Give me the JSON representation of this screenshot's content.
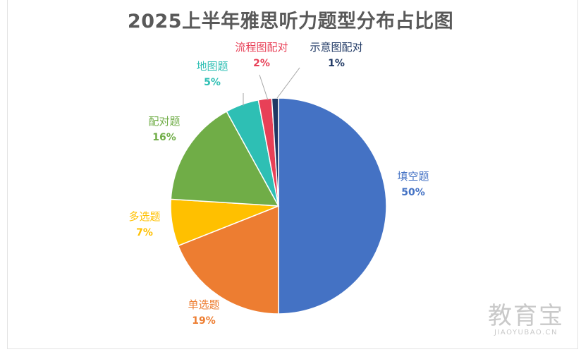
{
  "chart_data": {
    "type": "pie",
    "title": "2025上半年雅思听力题型分布占比图",
    "start_angle_deg": 0,
    "direction": "clockwise",
    "legend": "none",
    "slices": [
      {
        "name": "填空题",
        "value": 50,
        "label": "50%",
        "color": "#4472C4"
      },
      {
        "name": "单选题",
        "value": 19,
        "label": "19%",
        "color": "#ED7D31"
      },
      {
        "name": "多选题",
        "value": 7,
        "label": "7%",
        "color": "#FFC000"
      },
      {
        "name": "配对题",
        "value": 16,
        "label": "16%",
        "color": "#70AD47"
      },
      {
        "name": "地图题",
        "value": 5,
        "label": "5%",
        "color": "#2EBFB4"
      },
      {
        "name": "流程图配对",
        "value": 2,
        "label": "2%",
        "color": "#E84057"
      },
      {
        "name": "示意图配对",
        "value": 1,
        "label": "1%",
        "color": "#1F3864"
      }
    ]
  },
  "watermark": {
    "main": "教育宝",
    "sub": "JIAOYUBAO.CN"
  }
}
